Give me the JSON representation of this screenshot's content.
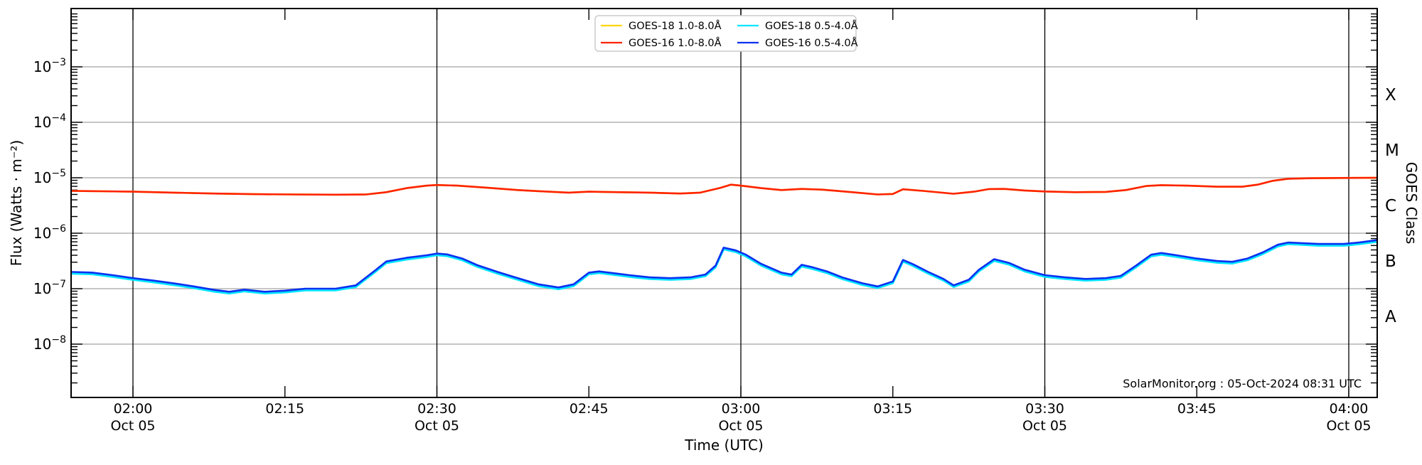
{
  "watermark": "SolarMonitor.org : 05-Oct-2024 08:31 UTC",
  "legend": {
    "border_color": "#cccccc",
    "columns": [
      [
        {
          "label": "GOES-18 1.0-8.0Å",
          "color": "#ffd400"
        },
        {
          "label": "GOES-16 1.0-8.0Å",
          "color": "#ff2200"
        }
      ],
      [
        {
          "label": "GOES-18 0.5-4.0Å",
          "color": "#00e6ff"
        },
        {
          "label": "GOES-16 0.5-4.0Å",
          "color": "#0a30f0"
        }
      ]
    ]
  },
  "chart_data": {
    "type": "line",
    "title": "",
    "xlabel": "Time (UTC)",
    "ylabel": "Flux (Watts · m⁻²)",
    "ylabel_right": "GOES Class",
    "x_axis": {
      "unit": "minutes UTC on 05-Oct-2024",
      "range_minutes": [
        113.9,
        242.8
      ],
      "ticks": [
        {
          "t": 120,
          "label": "02:00",
          "sub": "Oct 05",
          "grid": true
        },
        {
          "t": 135,
          "label": "02:15",
          "sub": "",
          "grid": false
        },
        {
          "t": 150,
          "label": "02:30",
          "sub": "Oct 05",
          "grid": true
        },
        {
          "t": 165,
          "label": "02:45",
          "sub": "",
          "grid": false
        },
        {
          "t": 180,
          "label": "03:00",
          "sub": "Oct 05",
          "grid": true
        },
        {
          "t": 195,
          "label": "03:15",
          "sub": "",
          "grid": false
        },
        {
          "t": 210,
          "label": "03:30",
          "sub": "Oct 05",
          "grid": true
        },
        {
          "t": 225,
          "label": "03:45",
          "sub": "",
          "grid": false
        },
        {
          "t": 240,
          "label": "04:00",
          "sub": "Oct 05",
          "grid": true
        }
      ]
    },
    "y_axis": {
      "scale": "log",
      "range": [
        1.1e-09,
        0.011
      ],
      "tick_exponents": [
        -3,
        -4,
        -5,
        -6,
        -7,
        -8
      ],
      "grid_color": "#b3b3b3",
      "minor_decades": [
        -9,
        -8,
        -7,
        -6,
        -5,
        -4,
        -3
      ]
    },
    "goes_classes": [
      {
        "label": "X",
        "log_center": -3.5
      },
      {
        "label": "M",
        "log_center": -4.5
      },
      {
        "label": "C",
        "log_center": -5.5
      },
      {
        "label": "B",
        "log_center": -6.5
      },
      {
        "label": "A",
        "log_center": -7.5
      }
    ],
    "legend_position": "top center",
    "grid": {
      "vertical_lines_every_30min": true,
      "horizontal_lines_each_decade": true
    },
    "series": [
      {
        "name": "GOES-18 1.0-8.0Å",
        "color": "#ffd400",
        "derived_from": "GOES-16 1.0-8.0Å",
        "scale": 1.0,
        "note": "coincident with GOES-16 long channel, hidden beneath red curve"
      },
      {
        "name": "GOES-18 0.5-4.0Å",
        "color": "#00e6ff",
        "derived_from": "GOES-16 0.5-4.0Å",
        "scale": 0.93,
        "note": "runs just below GOES-16 short channel, mostly hidden by blue curve"
      },
      {
        "name": "GOES-16 1.0-8.0Å",
        "color": "#ff2200",
        "points": [
          [
            114,
            5.8e-06
          ],
          [
            117,
            5.7e-06
          ],
          [
            120,
            5.6e-06
          ],
          [
            124,
            5.4e-06
          ],
          [
            128,
            5.2e-06
          ],
          [
            132,
            5.05e-06
          ],
          [
            136,
            5e-06
          ],
          [
            140,
            4.95e-06
          ],
          [
            143,
            5e-06
          ],
          [
            145,
            5.5e-06
          ],
          [
            147,
            6.5e-06
          ],
          [
            149,
            7.2e-06
          ],
          [
            150,
            7.4e-06
          ],
          [
            152,
            7.2e-06
          ],
          [
            155,
            6.6e-06
          ],
          [
            158,
            6e-06
          ],
          [
            161,
            5.6e-06
          ],
          [
            163,
            5.4e-06
          ],
          [
            165,
            5.6e-06
          ],
          [
            168,
            5.5e-06
          ],
          [
            171,
            5.4e-06
          ],
          [
            174,
            5.2e-06
          ],
          [
            176,
            5.4e-06
          ],
          [
            178,
            6.6e-06
          ],
          [
            179,
            7.5e-06
          ],
          [
            180,
            7.2e-06
          ],
          [
            182,
            6.5e-06
          ],
          [
            184,
            6e-06
          ],
          [
            186,
            6.3e-06
          ],
          [
            188,
            6.1e-06
          ],
          [
            191,
            5.5e-06
          ],
          [
            193.5,
            5e-06
          ],
          [
            195,
            5.1e-06
          ],
          [
            196,
            6.2e-06
          ],
          [
            198,
            5.8e-06
          ],
          [
            201,
            5.15e-06
          ],
          [
            203,
            5.6e-06
          ],
          [
            204.5,
            6.25e-06
          ],
          [
            206,
            6.3e-06
          ],
          [
            208,
            5.9e-06
          ],
          [
            210,
            5.65e-06
          ],
          [
            213,
            5.5e-06
          ],
          [
            216,
            5.55e-06
          ],
          [
            218,
            6e-06
          ],
          [
            220,
            7.1e-06
          ],
          [
            221.5,
            7.35e-06
          ],
          [
            224,
            7.2e-06
          ],
          [
            227,
            6.9e-06
          ],
          [
            229.5,
            6.9e-06
          ],
          [
            231,
            7.5e-06
          ],
          [
            232.5,
            8.8e-06
          ],
          [
            234,
            9.6e-06
          ],
          [
            236,
            9.8e-06
          ],
          [
            239,
            9.9e-06
          ],
          [
            242.8,
            1e-05
          ]
        ]
      },
      {
        "name": "GOES-16 0.5-4.0Å",
        "color": "#0a30f0",
        "points": [
          [
            114,
            2e-07
          ],
          [
            116,
            1.95e-07
          ],
          [
            118,
            1.75e-07
          ],
          [
            120,
            1.55e-07
          ],
          [
            122,
            1.4e-07
          ],
          [
            124,
            1.25e-07
          ],
          [
            126,
            1.1e-07
          ],
          [
            128,
            9.5e-08
          ],
          [
            129.5,
            8.8e-08
          ],
          [
            131,
            9.6e-08
          ],
          [
            133,
            8.8e-08
          ],
          [
            135,
            9.2e-08
          ],
          [
            137,
            1e-07
          ],
          [
            140,
            1e-07
          ],
          [
            142,
            1.15e-07
          ],
          [
            144,
            2.2e-07
          ],
          [
            145,
            3.1e-07
          ],
          [
            147,
            3.6e-07
          ],
          [
            149,
            4e-07
          ],
          [
            150,
            4.3e-07
          ],
          [
            151,
            4.15e-07
          ],
          [
            152.5,
            3.5e-07
          ],
          [
            154,
            2.65e-07
          ],
          [
            156,
            2e-07
          ],
          [
            158,
            1.55e-07
          ],
          [
            160,
            1.2e-07
          ],
          [
            162,
            1.05e-07
          ],
          [
            163.5,
            1.2e-07
          ],
          [
            165,
            1.95e-07
          ],
          [
            166,
            2.05e-07
          ],
          [
            167.5,
            1.9e-07
          ],
          [
            169,
            1.75e-07
          ],
          [
            171,
            1.6e-07
          ],
          [
            173,
            1.55e-07
          ],
          [
            175,
            1.6e-07
          ],
          [
            176.5,
            1.8e-07
          ],
          [
            177.5,
            2.6e-07
          ],
          [
            178.3,
            5.5e-07
          ],
          [
            179.5,
            4.9e-07
          ],
          [
            180.5,
            4.1e-07
          ],
          [
            182,
            2.8e-07
          ],
          [
            184,
            1.95e-07
          ],
          [
            185,
            1.8e-07
          ],
          [
            186,
            2.7e-07
          ],
          [
            187,
            2.45e-07
          ],
          [
            188.5,
            2.05e-07
          ],
          [
            190,
            1.6e-07
          ],
          [
            192,
            1.25e-07
          ],
          [
            193.5,
            1.1e-07
          ],
          [
            195,
            1.35e-07
          ],
          [
            196,
            3.3e-07
          ],
          [
            197,
            2.75e-07
          ],
          [
            198.5,
            2e-07
          ],
          [
            200,
            1.5e-07
          ],
          [
            201,
            1.15e-07
          ],
          [
            202.5,
            1.45e-07
          ],
          [
            203.5,
            2.2e-07
          ],
          [
            205,
            3.4e-07
          ],
          [
            206.5,
            2.9e-07
          ],
          [
            208,
            2.2e-07
          ],
          [
            210,
            1.75e-07
          ],
          [
            212,
            1.6e-07
          ],
          [
            214,
            1.5e-07
          ],
          [
            216,
            1.55e-07
          ],
          [
            217.5,
            1.7e-07
          ],
          [
            219,
            2.6e-07
          ],
          [
            220.5,
            4.1e-07
          ],
          [
            221.5,
            4.4e-07
          ],
          [
            223,
            4e-07
          ],
          [
            225,
            3.5e-07
          ],
          [
            227,
            3.15e-07
          ],
          [
            228.5,
            3.05e-07
          ],
          [
            230,
            3.5e-07
          ],
          [
            231.5,
            4.5e-07
          ],
          [
            233,
            6.2e-07
          ],
          [
            234,
            6.8e-07
          ],
          [
            235.5,
            6.6e-07
          ],
          [
            237,
            6.4e-07
          ],
          [
            239.5,
            6.4e-07
          ],
          [
            241,
            6.8e-07
          ],
          [
            242.8,
            7.5e-07
          ]
        ]
      }
    ]
  }
}
